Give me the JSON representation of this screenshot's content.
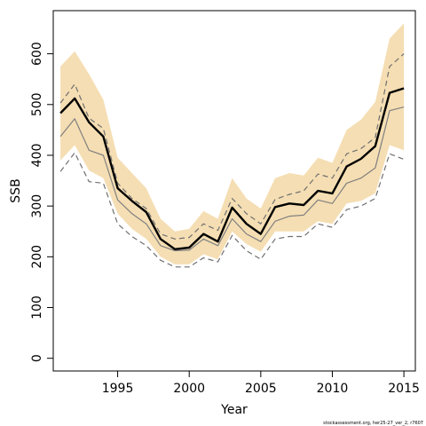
{
  "chart_data": {
    "type": "line",
    "xlabel": "Year",
    "ylabel": "SSB",
    "xlim": [
      1990.5,
      2015.8
    ],
    "ylim": [
      -25,
      685
    ],
    "xticks": [
      1995,
      2000,
      2005,
      2010,
      2015
    ],
    "yticks": [
      0,
      100,
      200,
      300,
      400,
      500,
      600
    ],
    "x": [
      1991,
      1992,
      1993,
      1994,
      1995,
      1996,
      1997,
      1998,
      1999,
      2000,
      2001,
      2002,
      2003,
      2004,
      2005,
      2006,
      2007,
      2008,
      2009,
      2010,
      2011,
      2012,
      2013,
      2014,
      2015
    ],
    "band": {
      "lower": [
        390,
        420,
        370,
        355,
        285,
        255,
        235,
        200,
        185,
        185,
        205,
        195,
        250,
        225,
        210,
        250,
        250,
        250,
        270,
        265,
        305,
        310,
        325,
        420,
        410
      ],
      "upper": [
        575,
        605,
        560,
        510,
        395,
        365,
        335,
        275,
        250,
        255,
        290,
        275,
        355,
        315,
        295,
        355,
        365,
        360,
        395,
        385,
        450,
        470,
        505,
        630,
        660
      ],
      "color": "#f5deb3"
    },
    "series": [
      {
        "values": [
          483,
          512,
          465,
          437,
          335,
          310,
          288,
          235,
          215,
          218,
          245,
          230,
          297,
          265,
          245,
          298,
          305,
          302,
          330,
          325,
          378,
          393,
          418,
          523,
          532
        ],
        "color": "#000000",
        "style": "solid-thick"
      },
      {
        "values": [
          437,
          472,
          410,
          400,
          312,
          285,
          265,
          222,
          212,
          213,
          235,
          222,
          275,
          245,
          230,
          270,
          280,
          282,
          312,
          305,
          345,
          355,
          375,
          488,
          495
        ],
        "color": "#808080",
        "style": "solid"
      },
      {
        "values": [
          503,
          540,
          473,
          453,
          345,
          315,
          295,
          245,
          235,
          238,
          265,
          252,
          315,
          285,
          265,
          313,
          323,
          330,
          363,
          355,
          403,
          413,
          435,
          575,
          600
        ],
        "color": "#707070",
        "style": "dashed"
      },
      {
        "values": [
          368,
          405,
          348,
          345,
          265,
          240,
          222,
          193,
          180,
          180,
          198,
          190,
          242,
          212,
          195,
          235,
          240,
          240,
          265,
          258,
          293,
          300,
          315,
          403,
          392
        ],
        "color": "#707070",
        "style": "dashed"
      }
    ],
    "grid": false,
    "footnote": "stockassessment.org, her25-27_ver_2, r7607"
  }
}
